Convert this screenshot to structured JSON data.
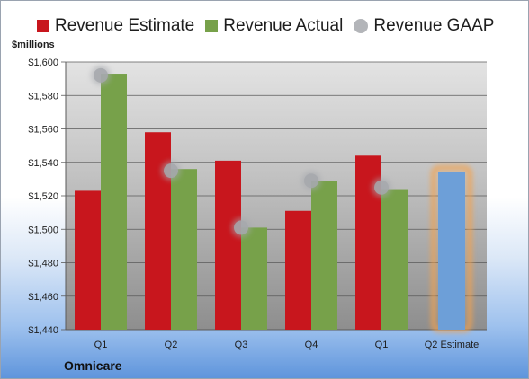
{
  "chart_data": {
    "type": "bar",
    "title": "",
    "company": "Omnicare",
    "ylabel": "$millions",
    "xlabel": "",
    "ylim": [
      1440,
      1600
    ],
    "yticks": [
      "$1,440",
      "$1,460",
      "$1,480",
      "$1,500",
      "$1,520",
      "$1,540",
      "$1,560",
      "$1,580",
      "$1,600"
    ],
    "categories": [
      "Q1",
      "Q2",
      "Q3",
      "Q4",
      "Q1",
      "Q2 Estimate"
    ],
    "series": [
      {
        "name": "Revenue Estimate",
        "type": "bar",
        "color": "#c8161d",
        "values": [
          1523,
          1558,
          1541,
          1511,
          1544,
          null
        ]
      },
      {
        "name": "Revenue Actual",
        "type": "bar",
        "color": "#77a14a",
        "values": [
          1593,
          1536,
          1501,
          1529,
          1524,
          1534
        ]
      },
      {
        "name": "Revenue GAAP",
        "type": "marker",
        "color": "#a6a8ad",
        "values": [
          1592,
          1535,
          1501,
          1529,
          1525,
          null
        ]
      }
    ],
    "estimate_bar_color": "#6d9fd8",
    "estimate_highlight_color": "#f5a24b",
    "legend_position": "top",
    "grid": true
  }
}
